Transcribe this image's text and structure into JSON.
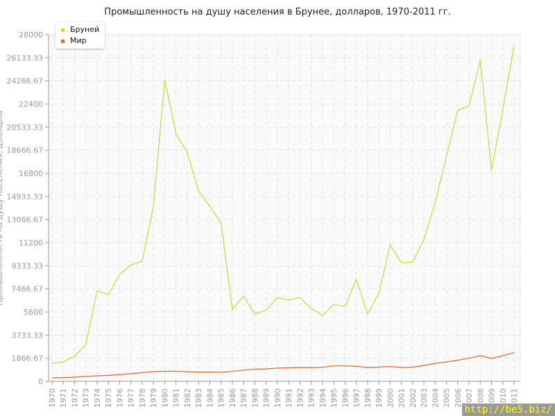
{
  "chart_data": {
    "type": "line",
    "title": "Промышленность на душу населения в Брунее, долларов, 1970-2011 гг.",
    "ylabel": "Промышленность на душу населения, долларов",
    "xlabel": "",
    "ylim": [
      0,
      28000
    ],
    "yticks": [
      "0",
      "1866.67",
      "3733.33",
      "5600",
      "7466.67",
      "9333.33",
      "11200",
      "13066.67",
      "14933.33",
      "16800",
      "18666.67",
      "20533.33",
      "22400",
      "24266.67",
      "26133.33",
      "28000"
    ],
    "x": [
      1970,
      1971,
      1972,
      1973,
      1974,
      1975,
      1976,
      1977,
      1978,
      1979,
      1980,
      1981,
      1982,
      1983,
      1984,
      1985,
      1986,
      1987,
      1988,
      1989,
      1990,
      1991,
      1992,
      1993,
      1994,
      1995,
      1996,
      1997,
      1998,
      1999,
      2000,
      2001,
      2002,
      2003,
      2004,
      2005,
      2006,
      2007,
      2008,
      2009,
      2010,
      2011
    ],
    "grid": true,
    "legend_position": "top-left",
    "series": [
      {
        "name": "Бруней",
        "color": "#c5d93b",
        "values": [
          1456,
          1568,
          2016,
          2968,
          7336,
          7000,
          8624,
          9408,
          9688,
          14168,
          24360,
          19992,
          18480,
          15400,
          14112,
          12824,
          5824,
          6888,
          5432,
          5768,
          6776,
          6552,
          6776,
          5880,
          5320,
          6216,
          6048,
          8232,
          5432,
          7112,
          11032,
          9576,
          9632,
          11480,
          14448,
          18200,
          21896,
          22232,
          25984,
          17024,
          21952,
          27104
        ]
      },
      {
        "name": "Мир",
        "color": "#e0652a",
        "values": [
          280,
          300,
          336,
          392,
          448,
          476,
          540,
          616,
          700,
          784,
          812,
          812,
          770,
          740,
          750,
          730,
          800,
          900,
          990,
          1000,
          1070,
          1090,
          1120,
          1100,
          1140,
          1250,
          1250,
          1220,
          1120,
          1150,
          1200,
          1120,
          1150,
          1280,
          1450,
          1570,
          1700,
          1880,
          2070,
          1850,
          2070,
          2320
        ]
      }
    ]
  },
  "watermark": "http://be5.biz/"
}
